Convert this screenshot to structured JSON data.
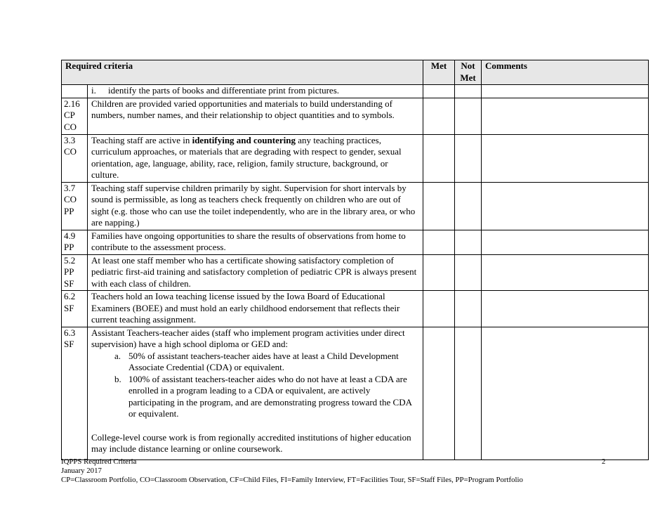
{
  "colors": {
    "page_bg": "#ffffff",
    "text": "#000000",
    "border": "#000000",
    "header_bg": "#e7e7e7"
  },
  "page": {
    "number": "2",
    "footer": {
      "line1": "IQPPS Required Criteria",
      "line2": "January 2017",
      "line3": "CP=Classroom Portfolio, CO=Classroom Observation, CF=Child Files, FI=Family Interview, FT=Facilities Tour, SF=Staff Files, PP=Program Portfolio"
    }
  },
  "table": {
    "headers": {
      "criteria": "Required criteria",
      "met": "Met",
      "not_met": "Not Met",
      "comments": "Comments"
    },
    "rows": [
      {
        "code": [],
        "criteria": {
          "type": "roman-item",
          "marker": "i.",
          "text": "identify the parts of books and differentiate print from pictures."
        },
        "met": "",
        "not_met": "",
        "comments": ""
      },
      {
        "code": [
          "2.16",
          "CP",
          "CO"
        ],
        "criteria": {
          "type": "text",
          "text": "Children are provided varied opportunities and materials to build understanding of numbers, number names, and their relationship to object quantities and to symbols."
        },
        "met": "",
        "not_met": "",
        "comments": ""
      },
      {
        "code": [
          "3.3",
          "CO"
        ],
        "criteria": {
          "type": "rich",
          "parts": [
            {
              "text": "Teaching staff are active in "
            },
            {
              "text": "identifying and countering",
              "bold": true
            },
            {
              "text": " any teaching practices, curriculum approaches, or materials that are degrading with respect to gender, sexual orientation, age, language, ability, race, religion, family structure, background, or culture."
            }
          ]
        },
        "met": "",
        "not_met": "",
        "comments": ""
      },
      {
        "code": [
          "3.7",
          "CO",
          "PP"
        ],
        "criteria": {
          "type": "text",
          "text": "Teaching staff supervise children primarily by sight.  Supervision for short intervals by sound is permissible, as long as teachers check frequently on children who are out of sight (e.g. those who can use the toilet independently, who are in the library area, or who are napping.)"
        },
        "met": "",
        "not_met": "",
        "comments": ""
      },
      {
        "code": [
          "4.9",
          "PP"
        ],
        "criteria": {
          "type": "text",
          "text": "Families have ongoing opportunities to share the results of observations from home to contribute to the assessment process."
        },
        "met": "",
        "not_met": "",
        "comments": ""
      },
      {
        "code": [
          "5.2",
          "PP",
          "SF"
        ],
        "criteria": {
          "type": "text",
          "text": "At least one staff member who has a certificate showing satisfactory completion of pediatric first-aid training and satisfactory completion of pediatric CPR is always present with each class of children."
        },
        "met": "",
        "not_met": "",
        "comments": ""
      },
      {
        "code": [
          "6.2",
          "SF"
        ],
        "criteria": {
          "type": "text",
          "text": "Teachers hold an Iowa teaching license issued by the Iowa Board of Educational Examiners (BOEE) and must hold an early childhood endorsement that reflects their current teaching assignment."
        },
        "met": "",
        "not_met": "",
        "comments": ""
      },
      {
        "code": [
          "6.3",
          "SF"
        ],
        "criteria": {
          "type": "complex",
          "intro": "Assistant Teachers-teacher aides (staff who implement program activities under direct supervision) have a high school diploma or GED and:",
          "list": [
            {
              "marker": "a.",
              "text": "50% of assistant teachers-teacher aides have at least a Child Development Associate Credential (CDA) or equivalent."
            },
            {
              "marker": "b.",
              "text": "100% of assistant teachers-teacher aides who do not have at least a CDA are enrolled in a program leading to a CDA or equivalent, are actively participating in the program, and are demonstrating progress toward the CDA or equivalent."
            }
          ],
          "outro": "College-level course work is from regionally accredited institutions of higher education may include distance learning or online coursework."
        },
        "met": "",
        "not_met": "",
        "comments": ""
      }
    ]
  }
}
